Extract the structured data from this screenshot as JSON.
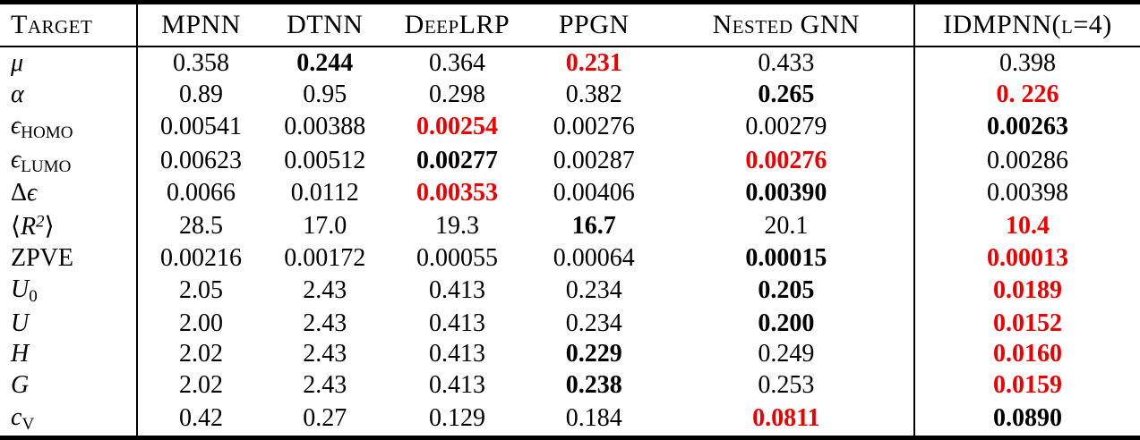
{
  "colors": {
    "highlight_red": "#ee0000",
    "text": "#000000",
    "rule": "#000000",
    "background": "#ffffff"
  },
  "table": {
    "columns": [
      "Target",
      "MPNN",
      "DTNN",
      "DeepLRP",
      "PPGN",
      "Nested GNN",
      "IDMPNN(l=4)"
    ],
    "rows": [
      {
        "target": {
          "text": "μ",
          "italic": true
        },
        "cells": [
          {
            "v": "0.358",
            "s": "n"
          },
          {
            "v": "0.244",
            "s": "b"
          },
          {
            "v": "0.364",
            "s": "n"
          },
          {
            "v": "0.231",
            "s": "r"
          },
          {
            "v": "0.433",
            "s": "n"
          },
          {
            "v": "0.398",
            "s": "n"
          }
        ]
      },
      {
        "target": {
          "text": "α",
          "italic": true
        },
        "cells": [
          {
            "v": "0.89",
            "s": "n"
          },
          {
            "v": "0.95",
            "s": "n"
          },
          {
            "v": "0.298",
            "s": "n"
          },
          {
            "v": "0.382",
            "s": "n"
          },
          {
            "v": "0.265",
            "s": "b"
          },
          {
            "v": "0. 226",
            "s": "r"
          }
        ]
      },
      {
        "target": {
          "text": "ϵ",
          "sub": "HOMO",
          "italic": true
        },
        "cells": [
          {
            "v": "0.00541",
            "s": "n"
          },
          {
            "v": "0.00388",
            "s": "n"
          },
          {
            "v": "0.00254",
            "s": "r"
          },
          {
            "v": "0.00276",
            "s": "n"
          },
          {
            "v": "0.00279",
            "s": "n"
          },
          {
            "v": "0.00263",
            "s": "b"
          }
        ]
      },
      {
        "target": {
          "text": "ϵ",
          "sub": "LUMO",
          "italic": true
        },
        "cells": [
          {
            "v": "0.00623",
            "s": "n"
          },
          {
            "v": "0.00512",
            "s": "n"
          },
          {
            "v": "0.00277",
            "s": "b"
          },
          {
            "v": "0.00287",
            "s": "n"
          },
          {
            "v": "0.00276",
            "s": "r"
          },
          {
            "v": "0.00286",
            "s": "n"
          }
        ]
      },
      {
        "target": {
          "pre": "Δ",
          "text": "ϵ",
          "italic": true
        },
        "cells": [
          {
            "v": "0.0066",
            "s": "n"
          },
          {
            "v": "0.0112",
            "s": "n"
          },
          {
            "v": "0.00353",
            "s": "r"
          },
          {
            "v": "0.00406",
            "s": "n"
          },
          {
            "v": "0.00390",
            "s": "b"
          },
          {
            "v": "0.00398",
            "s": "n"
          }
        ]
      },
      {
        "target": {
          "pre": "⟨",
          "text": "R",
          "sup": "2",
          "post": "⟩",
          "italic": true
        },
        "cells": [
          {
            "v": "28.5",
            "s": "n"
          },
          {
            "v": "17.0",
            "s": "n"
          },
          {
            "v": "19.3",
            "s": "n"
          },
          {
            "v": "16.7",
            "s": "b"
          },
          {
            "v": "20.1",
            "s": "n"
          },
          {
            "v": "10.4",
            "s": "r"
          }
        ]
      },
      {
        "target": {
          "text": "ZPVE",
          "italic": false
        },
        "cells": [
          {
            "v": "0.00216",
            "s": "n"
          },
          {
            "v": "0.00172",
            "s": "n"
          },
          {
            "v": "0.00055",
            "s": "n"
          },
          {
            "v": "0.00064",
            "s": "n"
          },
          {
            "v": "0.00015",
            "s": "b"
          },
          {
            "v": "0.00013",
            "s": "r"
          }
        ]
      },
      {
        "target": {
          "text": "U",
          "sub": "0",
          "italic": true
        },
        "cells": [
          {
            "v": "2.05",
            "s": "n"
          },
          {
            "v": "2.43",
            "s": "n"
          },
          {
            "v": "0.413",
            "s": "n"
          },
          {
            "v": "0.234",
            "s": "n"
          },
          {
            "v": "0.205",
            "s": "b"
          },
          {
            "v": "0.0189",
            "s": "r"
          }
        ]
      },
      {
        "target": {
          "text": "U",
          "italic": true
        },
        "cells": [
          {
            "v": "2.00",
            "s": "n"
          },
          {
            "v": "2.43",
            "s": "n"
          },
          {
            "v": "0.413",
            "s": "n"
          },
          {
            "v": "0.234",
            "s": "n"
          },
          {
            "v": "0.200",
            "s": "b"
          },
          {
            "v": "0.0152",
            "s": "r"
          }
        ]
      },
      {
        "target": {
          "text": "H",
          "italic": true
        },
        "cells": [
          {
            "v": "2.02",
            "s": "n"
          },
          {
            "v": "2.43",
            "s": "n"
          },
          {
            "v": "0.413",
            "s": "n"
          },
          {
            "v": "0.229",
            "s": "b"
          },
          {
            "v": "0.249",
            "s": "n"
          },
          {
            "v": "0.0160",
            "s": "r"
          }
        ]
      },
      {
        "target": {
          "text": "G",
          "italic": true
        },
        "cells": [
          {
            "v": "2.02",
            "s": "n"
          },
          {
            "v": "2.43",
            "s": "n"
          },
          {
            "v": "0.413",
            "s": "n"
          },
          {
            "v": "0.238",
            "s": "b"
          },
          {
            "v": "0.253",
            "s": "n"
          },
          {
            "v": "0.0159",
            "s": "r"
          }
        ]
      },
      {
        "target": {
          "text": "c",
          "sub": "V",
          "italic": true
        },
        "cells": [
          {
            "v": "0.42",
            "s": "n"
          },
          {
            "v": "0.27",
            "s": "n"
          },
          {
            "v": "0.129",
            "s": "n"
          },
          {
            "v": "0.184",
            "s": "n"
          },
          {
            "v": "0.0811",
            "s": "r"
          },
          {
            "v": "0.0890",
            "s": "b"
          }
        ]
      }
    ]
  }
}
